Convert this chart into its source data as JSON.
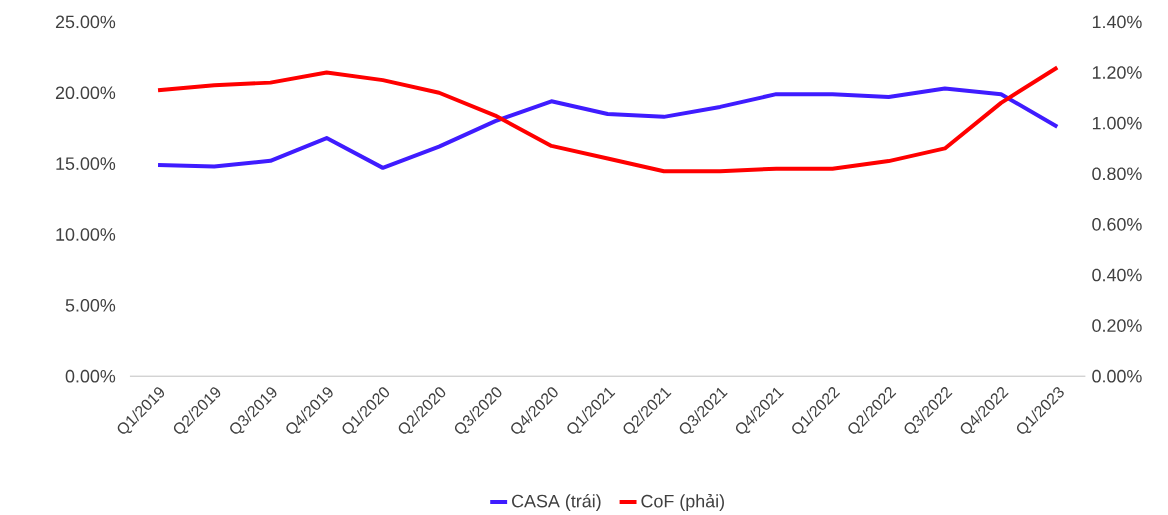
{
  "chart_data": {
    "type": "line",
    "categories": [
      "Q1/2019",
      "Q2/2019",
      "Q3/2019",
      "Q4/2019",
      "Q1/2020",
      "Q2/2020",
      "Q3/2020",
      "Q4/2020",
      "Q1/2021",
      "Q2/2021",
      "Q3/2021",
      "Q4/2021",
      "Q1/2022",
      "Q2/2022",
      "Q3/2022",
      "Q4/2022",
      "Q1/2023"
    ],
    "series": [
      {
        "name": "CASA (trái)",
        "color": "#3f1cff",
        "axis": "y",
        "values": [
          14.9,
          14.8,
          15.2,
          16.8,
          14.7,
          16.2,
          18.0,
          19.4,
          18.5,
          18.3,
          19.0,
          19.9,
          19.9,
          19.7,
          20.3,
          19.9,
          17.6
        ]
      },
      {
        "name": "CoF (phải)",
        "color": "#ff0000",
        "axis": "y2",
        "values": [
          1.13,
          1.15,
          1.16,
          1.2,
          1.17,
          1.12,
          1.03,
          0.91,
          0.86,
          0.81,
          0.81,
          0.82,
          0.82,
          0.85,
          0.9,
          1.08,
          1.22
        ]
      }
    ],
    "ylim": [
      0,
      25
    ],
    "yticks": [
      {
        "value": 0,
        "label": "0.00%"
      },
      {
        "value": 5,
        "label": "5.00%"
      },
      {
        "value": 10,
        "label": "10.00%"
      },
      {
        "value": 15,
        "label": "15.00%"
      },
      {
        "value": 20,
        "label": "20.00%"
      },
      {
        "value": 25,
        "label": "25.00%"
      }
    ],
    "y2lim": [
      0,
      1.4
    ],
    "y2ticks": [
      {
        "value": 0,
        "label": "0.00%"
      },
      {
        "value": 0.2,
        "label": "0.20%"
      },
      {
        "value": 0.4,
        "label": "0.40%"
      },
      {
        "value": 0.6,
        "label": "0.60%"
      },
      {
        "value": 0.8,
        "label": "0.80%"
      },
      {
        "value": 1.0,
        "label": "1.00%"
      },
      {
        "value": 1.2,
        "label": "1.20%"
      },
      {
        "value": 1.4,
        "label": "1.40%"
      }
    ],
    "grid": false,
    "legend": "bottom",
    "marker": "none",
    "line_style": "solid"
  }
}
